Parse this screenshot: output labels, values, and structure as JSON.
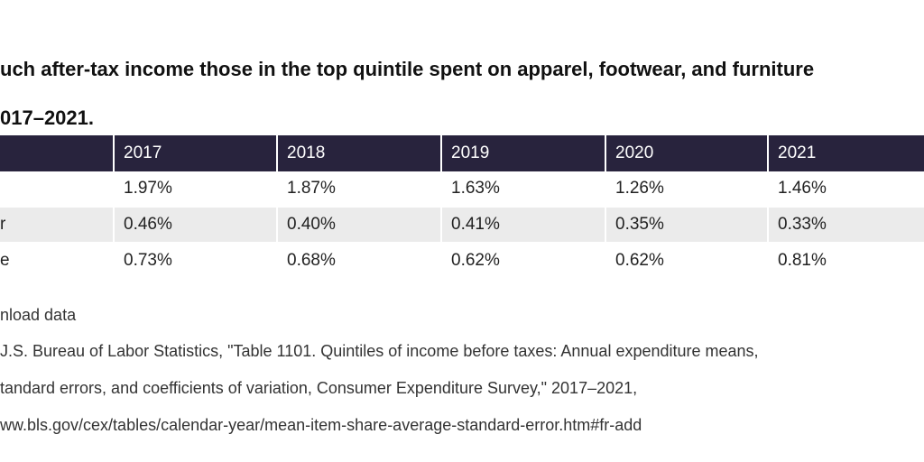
{
  "header": {
    "title_line1": "uch after-tax income those in the top quintile spent on apparel, footwear, and furniture",
    "title_line2": "017–2021."
  },
  "table": {
    "columns": [
      "2017",
      "2018",
      "2019",
      "2020",
      "2021"
    ],
    "rows": [
      {
        "values": [
          "1.97%",
          "1.87%",
          "1.63%",
          "1.26%",
          "1.46%"
        ]
      },
      {
        "label": "r",
        "values": [
          "0.46%",
          "0.40%",
          "0.41%",
          "0.35%",
          "0.33%"
        ]
      },
      {
        "label": "e",
        "values": [
          "0.73%",
          "0.68%",
          "0.62%",
          "0.62%",
          "0.81%"
        ]
      }
    ]
  },
  "footer": {
    "download": "nload data",
    "source": [
      "J.S. Bureau of Labor Statistics, \"Table 1101. Quintiles of income before taxes: Annual expenditure means,",
      "tandard errors, and coefficients of variation, Consumer Expenditure Survey,\" 2017–2021,",
      "ww.bls.gov/cex/tables/calendar-year/mean-item-share-average-standard-error.htm#fr-add"
    ]
  }
}
